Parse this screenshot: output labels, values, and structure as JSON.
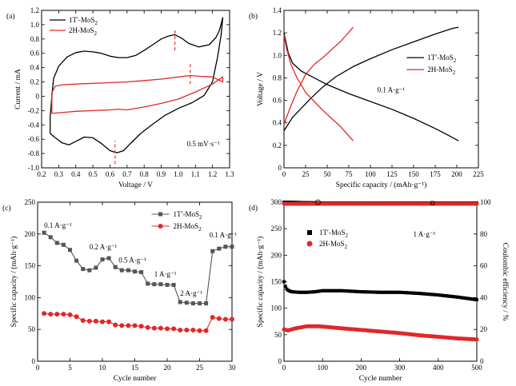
{
  "chart_data": [
    {
      "panel": "(a)",
      "type": "line",
      "xlabel": "Voltage / V",
      "ylabel": "Current / mA",
      "xlim": [
        0.2,
        1.3
      ],
      "ylim": [
        -1.0,
        1.2
      ],
      "xticks": [
        "0.2",
        "0.3",
        "0.4",
        "0.5",
        "0.6",
        "0.7",
        "0.8",
        "0.9",
        "1.0",
        "1.1",
        "1.2",
        "1.3"
      ],
      "yticks": [
        "-1.0",
        "-0.8",
        "-0.6",
        "-0.4",
        "-0.2",
        "0",
        "0.2",
        "0.4",
        "0.6",
        "0.8",
        "1.0",
        "1.2"
      ],
      "annotation": "0.5 mV·s⁻¹",
      "legend_position": "top-left",
      "marker_lines_x": [
        0.63,
        0.98,
        1.07
      ],
      "series": [
        {
          "name": "1T′-MoS₂",
          "legend": {
            "base": "1T′-MoS",
            "sub": "2"
          },
          "color": "#000000",
          "points": [
            [
              0.25,
              -0.52
            ],
            [
              0.28,
              -0.58
            ],
            [
              0.32,
              -0.65
            ],
            [
              0.36,
              -0.68
            ],
            [
              0.4,
              -0.63
            ],
            [
              0.45,
              -0.57
            ],
            [
              0.5,
              -0.58
            ],
            [
              0.55,
              -0.66
            ],
            [
              0.6,
              -0.76
            ],
            [
              0.64,
              -0.79
            ],
            [
              0.68,
              -0.76
            ],
            [
              0.72,
              -0.66
            ],
            [
              0.78,
              -0.52
            ],
            [
              0.85,
              -0.39
            ],
            [
              0.92,
              -0.27
            ],
            [
              1.0,
              -0.17
            ],
            [
              1.08,
              -0.09
            ],
            [
              1.15,
              0.01
            ],
            [
              1.2,
              0.2
            ],
            [
              1.23,
              0.55
            ],
            [
              1.25,
              0.85
            ],
            [
              1.26,
              1.1
            ],
            [
              1.24,
              0.92
            ],
            [
              1.22,
              0.82
            ],
            [
              1.18,
              0.72
            ],
            [
              1.12,
              0.69
            ],
            [
              1.06,
              0.74
            ],
            [
              1.02,
              0.81
            ],
            [
              0.98,
              0.86
            ],
            [
              0.94,
              0.84
            ],
            [
              0.9,
              0.8
            ],
            [
              0.85,
              0.72
            ],
            [
              0.8,
              0.64
            ],
            [
              0.75,
              0.57
            ],
            [
              0.7,
              0.54
            ],
            [
              0.65,
              0.54
            ],
            [
              0.6,
              0.56
            ],
            [
              0.55,
              0.6
            ],
            [
              0.5,
              0.62
            ],
            [
              0.45,
              0.63
            ],
            [
              0.4,
              0.61
            ],
            [
              0.35,
              0.55
            ],
            [
              0.3,
              0.42
            ],
            [
              0.27,
              0.25
            ],
            [
              0.26,
              0.0
            ],
            [
              0.25,
              -0.3
            ],
            [
              0.25,
              -0.52
            ]
          ]
        },
        {
          "name": "2H-MoS₂",
          "legend": {
            "base": "2H-MoS",
            "sub": "2"
          },
          "color": "#e0282a",
          "points": [
            [
              0.26,
              -0.24
            ],
            [
              0.3,
              -0.23
            ],
            [
              0.4,
              -0.21
            ],
            [
              0.5,
              -0.2
            ],
            [
              0.6,
              -0.19
            ],
            [
              0.65,
              -0.18
            ],
            [
              0.7,
              -0.19
            ],
            [
              0.8,
              -0.15
            ],
            [
              0.9,
              -0.1
            ],
            [
              1.0,
              -0.04
            ],
            [
              1.1,
              0.06
            ],
            [
              1.2,
              0.17
            ],
            [
              1.26,
              0.27
            ],
            [
              1.26,
              0.2
            ],
            [
              1.2,
              0.27
            ],
            [
              1.12,
              0.28
            ],
            [
              1.07,
              0.29
            ],
            [
              1.0,
              0.27
            ],
            [
              0.9,
              0.24
            ],
            [
              0.8,
              0.22
            ],
            [
              0.7,
              0.2
            ],
            [
              0.6,
              0.19
            ],
            [
              0.5,
              0.18
            ],
            [
              0.4,
              0.17
            ],
            [
              0.32,
              0.16
            ],
            [
              0.28,
              0.14
            ],
            [
              0.26,
              0.05
            ],
            [
              0.26,
              -0.24
            ]
          ]
        }
      ]
    },
    {
      "panel": "(b)",
      "type": "line",
      "xlabel": "Specific capacity / (mAh·g⁻¹)",
      "ylabel": "Voltage / V",
      "xlim": [
        0,
        225
      ],
      "ylim": [
        0,
        1.4
      ],
      "xticks": [
        "0",
        "25",
        "50",
        "75",
        "100",
        "125",
        "150",
        "175",
        "200",
        "225"
      ],
      "yticks": [
        "0",
        "0.2",
        "0.4",
        "0.6",
        "0.8",
        "1.0",
        "1.2",
        "1.4"
      ],
      "annotation": "0.1 A·g⁻¹",
      "legend_position": "right",
      "series": [
        {
          "name": "1T′-MoS₂ discharge",
          "color": "#000000",
          "points": [
            [
              0,
              1.2
            ],
            [
              5,
              1.02
            ],
            [
              10,
              0.93
            ],
            [
              20,
              0.86
            ],
            [
              35,
              0.8
            ],
            [
              50,
              0.74
            ],
            [
              75,
              0.66
            ],
            [
              100,
              0.59
            ],
            [
              125,
              0.52
            ],
            [
              150,
              0.44
            ],
            [
              175,
              0.35
            ],
            [
              190,
              0.29
            ],
            [
              202,
              0.24
            ]
          ]
        },
        {
          "name": "1T′-MoS₂ charge",
          "color": "#000000",
          "points": [
            [
              0,
              0.33
            ],
            [
              5,
              0.39
            ],
            [
              10,
              0.45
            ],
            [
              20,
              0.53
            ],
            [
              30,
              0.61
            ],
            [
              45,
              0.72
            ],
            [
              60,
              0.81
            ],
            [
              80,
              0.9
            ],
            [
              100,
              0.97
            ],
            [
              125,
              1.05
            ],
            [
              150,
              1.12
            ],
            [
              175,
              1.19
            ],
            [
              195,
              1.24
            ],
            [
              202,
              1.25
            ]
          ]
        },
        {
          "name": "2H-MoS₂ discharge",
          "color": "#e0282a",
          "points": [
            [
              0,
              1.18
            ],
            [
              3,
              1.06
            ],
            [
              8,
              0.92
            ],
            [
              15,
              0.8
            ],
            [
              25,
              0.67
            ],
            [
              35,
              0.59
            ],
            [
              45,
              0.51
            ],
            [
              55,
              0.44
            ],
            [
              65,
              0.37
            ],
            [
              72,
              0.31
            ],
            [
              80,
              0.24
            ]
          ]
        },
        {
          "name": "2H-MoS₂ charge",
          "color": "#e0282a",
          "points": [
            [
              0,
              0.38
            ],
            [
              3,
              0.45
            ],
            [
              8,
              0.55
            ],
            [
              15,
              0.68
            ],
            [
              25,
              0.83
            ],
            [
              35,
              0.92
            ],
            [
              45,
              0.98
            ],
            [
              55,
              1.05
            ],
            [
              65,
              1.12
            ],
            [
              72,
              1.18
            ],
            [
              80,
              1.25
            ]
          ]
        }
      ],
      "legend": [
        {
          "name": "1T′-MoS₂",
          "base": "1T′-MoS",
          "sub": "2",
          "color": "#000000"
        },
        {
          "name": "2H-MoS₂",
          "base": "2H-MoS",
          "sub": "2",
          "color": "#e0282a"
        }
      ]
    },
    {
      "panel": "(c)",
      "type": "line",
      "xlabel": "Cycle number",
      "ylabel": "Specific capacity / (mAh·g⁻¹)",
      "xlim": [
        0,
        30
      ],
      "ylim": [
        0,
        250
      ],
      "xticks": [
        "0",
        "5",
        "10",
        "15",
        "20",
        "25",
        "30"
      ],
      "yticks": [
        "0",
        "50",
        "100",
        "150",
        "200",
        "250"
      ],
      "legend_position": "top-right",
      "rate_labels": [
        {
          "text": "0.1 A·g⁻¹",
          "x": 1.0,
          "y": 210
        },
        {
          "text": "0.2 A·g⁻¹",
          "x": 8.0,
          "y": 176
        },
        {
          "text": "0.5 A·g⁻¹",
          "x": 12.5,
          "y": 155
        },
        {
          "text": "1 A·g⁻¹",
          "x": 18.0,
          "y": 133
        },
        {
          "text": "2 A·g⁻¹",
          "x": 22.0,
          "y": 103
        },
        {
          "text": "0.1 A·g⁻¹",
          "x": 26.5,
          "y": 195
        }
      ],
      "series": [
        {
          "name": "1T′-MoS₂",
          "legend": {
            "base": "1T′-MoS",
            "sub": "2"
          },
          "color": "#555555",
          "marker": "square",
          "x": [
            1,
            2,
            3,
            4,
            5,
            6,
            7,
            8,
            9,
            10,
            11,
            12,
            13,
            14,
            15,
            16,
            17,
            18,
            19,
            20,
            21,
            22,
            23,
            24,
            25,
            26,
            27,
            28,
            29,
            30
          ],
          "values": [
            202,
            195,
            186,
            183,
            175,
            158,
            145,
            143,
            147,
            160,
            162,
            148,
            143,
            143,
            141,
            140,
            122,
            121,
            121,
            120,
            120,
            93,
            92,
            91,
            91,
            91,
            173,
            177,
            180,
            180
          ]
        },
        {
          "name": "2H-MoS₂",
          "legend": {
            "base": "2H-MoS",
            "sub": "2"
          },
          "color": "#e0282a",
          "marker": "circle",
          "x": [
            1,
            2,
            3,
            4,
            5,
            6,
            7,
            8,
            9,
            10,
            11,
            12,
            13,
            14,
            15,
            16,
            17,
            18,
            19,
            20,
            21,
            22,
            23,
            24,
            25,
            26,
            27,
            28,
            29,
            30
          ],
          "values": [
            75,
            74,
            74,
            74,
            73,
            70,
            64,
            63,
            63,
            62,
            62,
            57,
            56,
            56,
            56,
            55,
            53,
            52,
            52,
            51,
            51,
            49,
            49,
            49,
            48,
            48,
            69,
            67,
            66,
            66
          ]
        }
      ]
    },
    {
      "panel": "(d)",
      "type": "scatter",
      "xlabel": "Cycle number",
      "ylabel": "Specific capacity / (mAh·g⁻¹)",
      "ylabel_right": "Coulombic efficiency / %",
      "xlim": [
        0,
        500
      ],
      "ylim": [
        0,
        300
      ],
      "ylim_right": [
        0,
        100
      ],
      "xticks": [
        "0",
        "100",
        "200",
        "300",
        "400",
        "500"
      ],
      "yticks": [
        "0",
        "50",
        "100",
        "150",
        "200",
        "250",
        "300"
      ],
      "yticks_right": [
        "0",
        "20",
        "40",
        "60",
        "80",
        "100"
      ],
      "annotation": "1 A·g⁻¹",
      "legend_position": "center-left",
      "series": [
        {
          "name": "1T′-MoS₂",
          "legend": {
            "base": "1T′-MoS",
            "sub": "2"
          },
          "color": "#000000",
          "marker": "square",
          "axis": "left",
          "points": [
            [
              0,
              150
            ],
            [
              5,
              138
            ],
            [
              10,
              134
            ],
            [
              20,
              131
            ],
            [
              40,
              130
            ],
            [
              60,
              130
            ],
            [
              80,
              131
            ],
            [
              100,
              133
            ],
            [
              150,
              133
            ],
            [
              200,
              131
            ],
            [
              250,
              130
            ],
            [
              300,
              130
            ],
            [
              350,
              128
            ],
            [
              400,
              125
            ],
            [
              450,
              121
            ],
            [
              500,
              116
            ]
          ]
        },
        {
          "name": "2H-MoS₂",
          "legend": {
            "base": "2H-MoS",
            "sub": "2"
          },
          "color": "#e0282a",
          "marker": "circle",
          "axis": "left",
          "points": [
            [
              0,
              60
            ],
            [
              10,
              58
            ],
            [
              30,
              62
            ],
            [
              60,
              66
            ],
            [
              90,
              66
            ],
            [
              120,
              64
            ],
            [
              150,
              62
            ],
            [
              200,
              59
            ],
            [
              250,
              56
            ],
            [
              300,
              53
            ],
            [
              350,
              49
            ],
            [
              400,
              46
            ],
            [
              450,
              43
            ],
            [
              500,
              41
            ]
          ]
        },
        {
          "name": "1T′-MoS₂ CE",
          "color": "#000000",
          "marker": "square",
          "axis": "right",
          "points": [
            [
              0,
              100
            ],
            [
              100,
              99.5
            ],
            [
              200,
              99.5
            ],
            [
              300,
              99.5
            ],
            [
              400,
              99.5
            ],
            [
              500,
              99.5
            ]
          ]
        },
        {
          "name": "2H-MoS₂ CE",
          "color": "#e0282a",
          "marker": "circle",
          "axis": "right",
          "points": [
            [
              0,
              99
            ],
            [
              100,
              99
            ],
            [
              200,
              99
            ],
            [
              300,
              99
            ],
            [
              400,
              99
            ],
            [
              500,
              99
            ]
          ]
        }
      ]
    }
  ]
}
